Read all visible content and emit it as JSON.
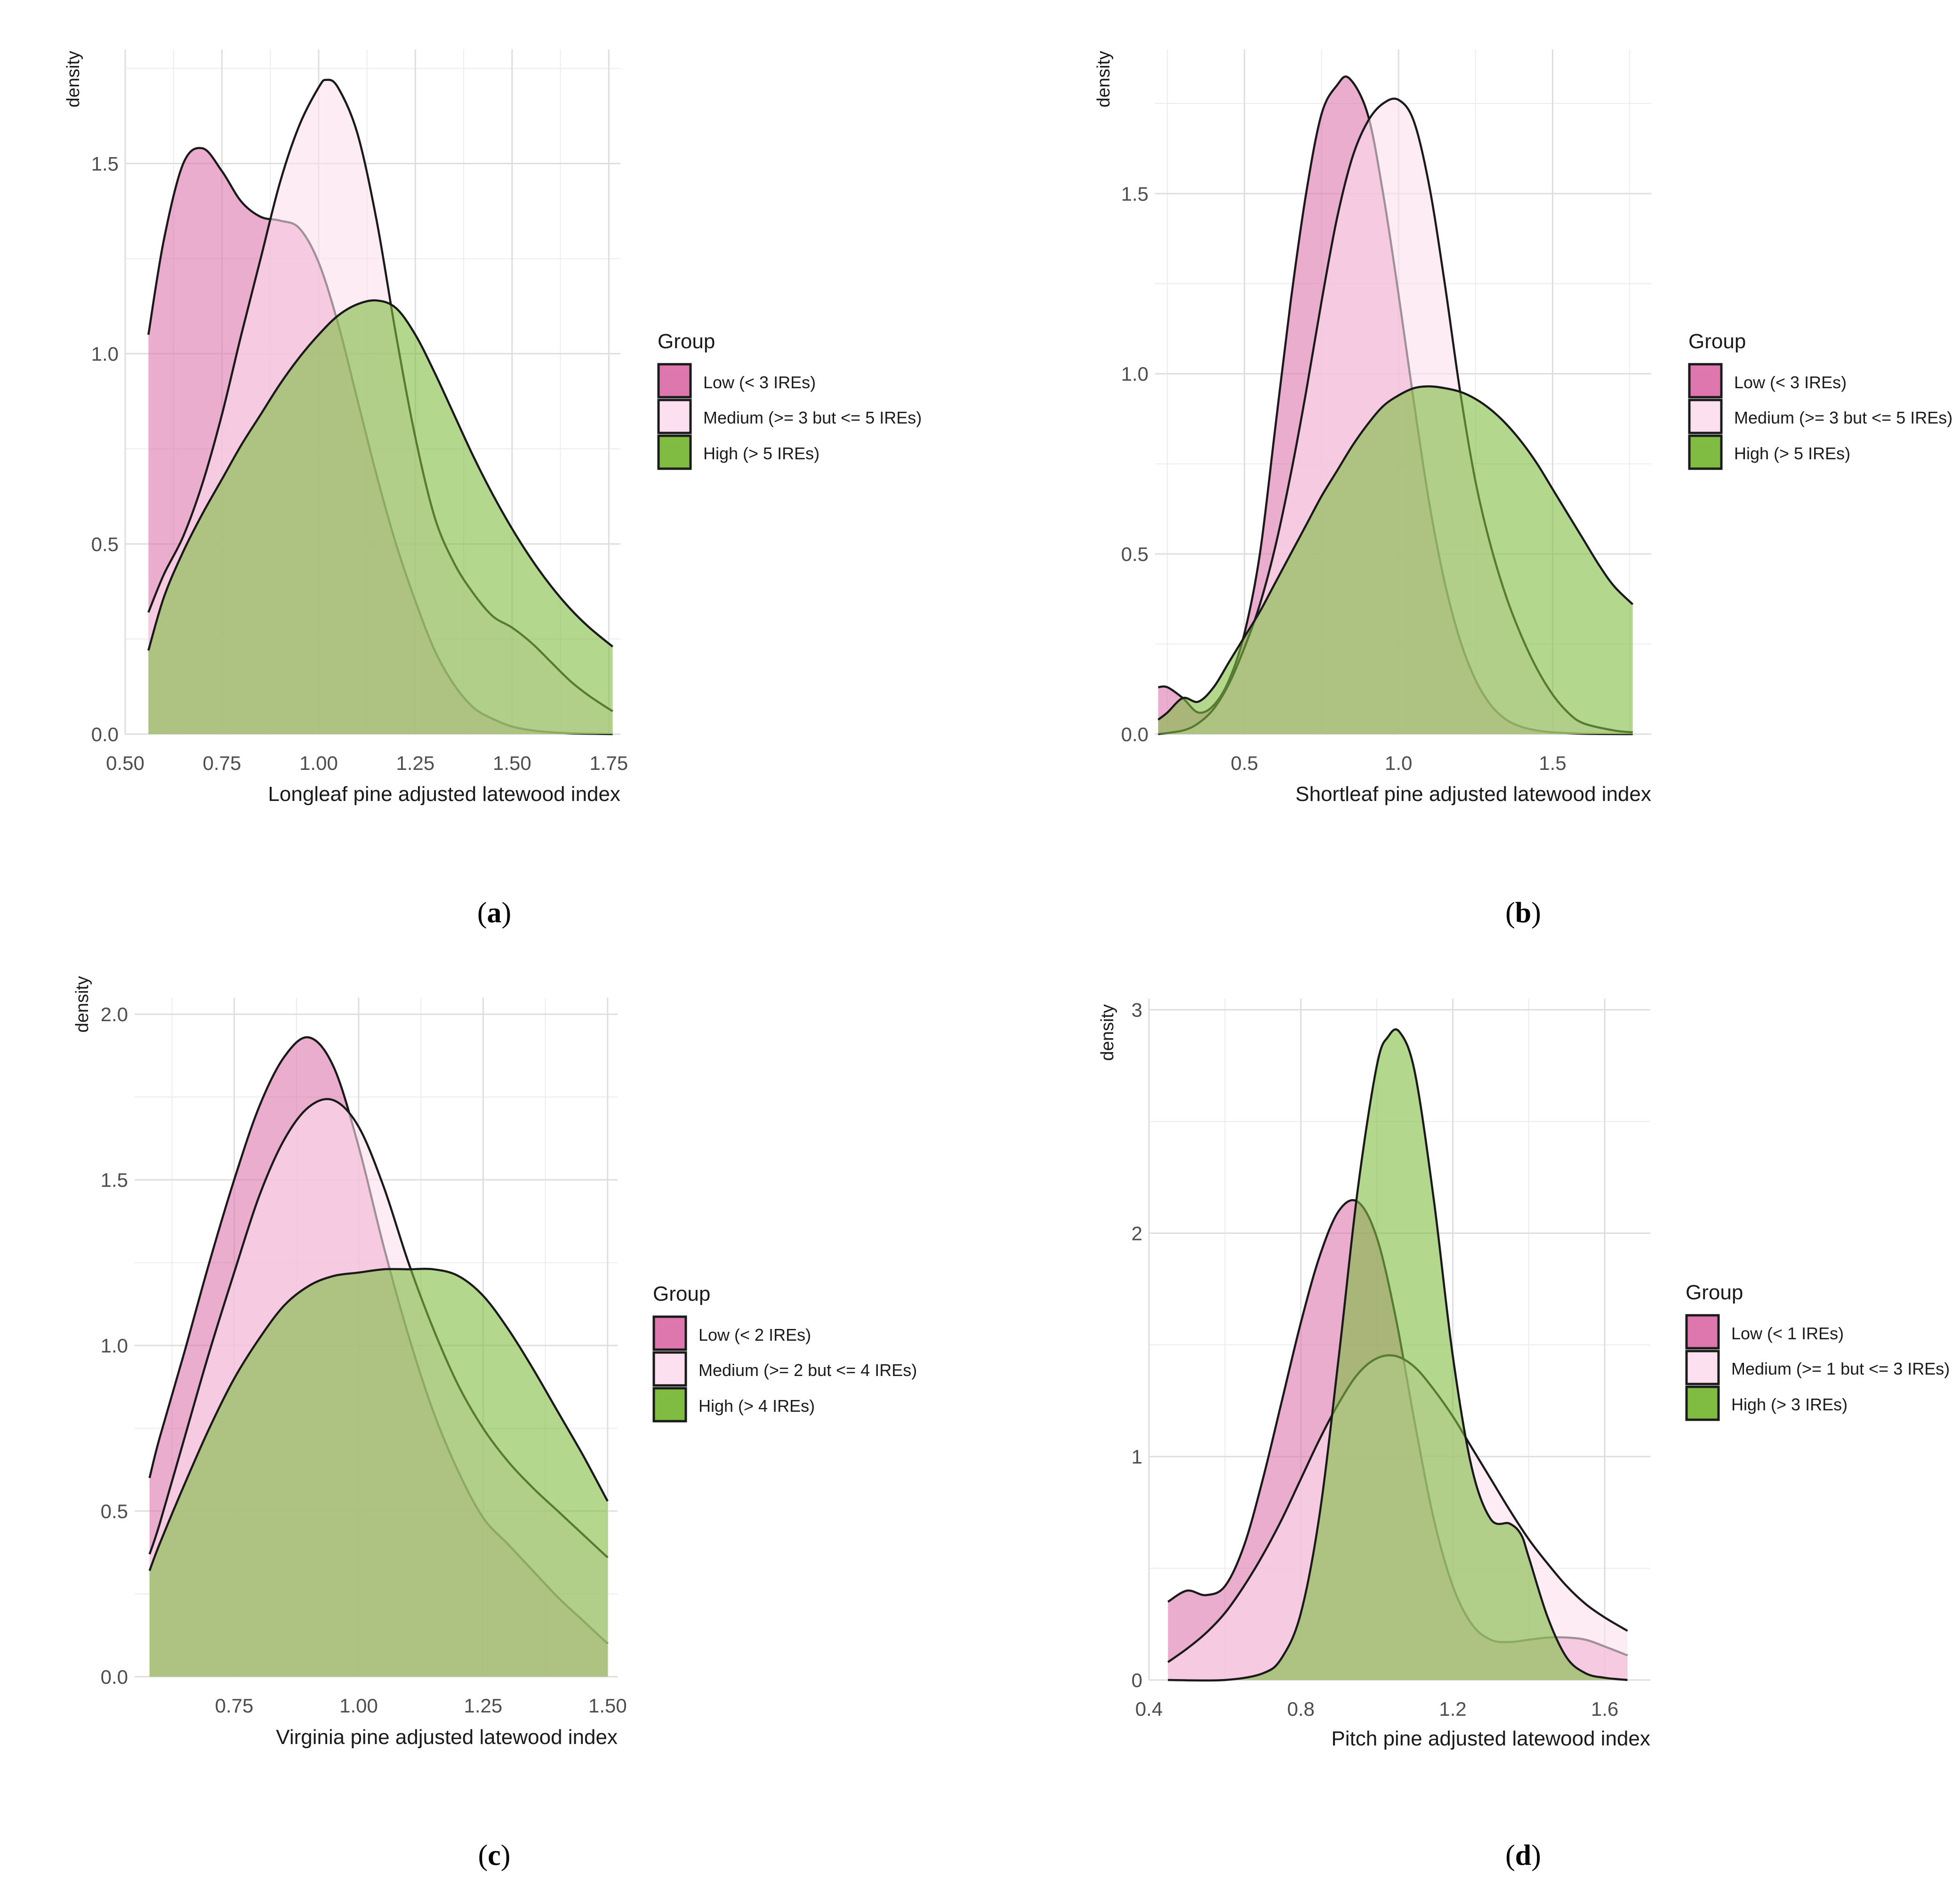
{
  "colors": {
    "low": "#de77ae",
    "medium": "#fde0ef",
    "high": "#7fbc41",
    "grid": "#dedede",
    "outline": "#1a1a1a"
  },
  "chart_data": [
    {
      "panel": "a",
      "caption": "(a)",
      "caption_letter": "a",
      "type": "area",
      "xlabel": "Longleaf pine adjusted latewood index",
      "ylabel": "density",
      "xlim": [
        0.5,
        1.78
      ],
      "ylim": [
        0,
        1.8
      ],
      "xticks": [
        0.5,
        0.75,
        1.0,
        1.25,
        1.5,
        1.75
      ],
      "xtick_labels": [
        "0.50",
        "0.75",
        "1.00",
        "1.25",
        "1.50",
        "1.75"
      ],
      "yticks": [
        0,
        0.5,
        1.0,
        1.5
      ],
      "ytick_labels": [
        "0.0",
        "0.5",
        "1.0",
        "1.5"
      ],
      "legend_title": "Group",
      "series": [
        {
          "key": "low",
          "name": "Low (< 3 IREs)",
          "x": [
            0.56,
            0.6,
            0.65,
            0.7,
            0.75,
            0.8,
            0.85,
            0.9,
            0.95,
            1.0,
            1.05,
            1.1,
            1.15,
            1.2,
            1.25,
            1.3,
            1.35,
            1.4,
            1.45,
            1.5,
            1.55,
            1.6,
            1.65,
            1.7,
            1.76
          ],
          "y": [
            1.05,
            1.3,
            1.5,
            1.54,
            1.48,
            1.4,
            1.36,
            1.35,
            1.33,
            1.24,
            1.08,
            0.88,
            0.68,
            0.5,
            0.35,
            0.22,
            0.13,
            0.07,
            0.04,
            0.02,
            0.01,
            0.005,
            0.002,
            0.001,
            0.0
          ]
        },
        {
          "key": "medium",
          "name": "Medium (>= 3 but <= 5 IREs)",
          "x": [
            0.56,
            0.6,
            0.65,
            0.7,
            0.75,
            0.8,
            0.85,
            0.9,
            0.95,
            1.0,
            1.02,
            1.05,
            1.1,
            1.15,
            1.2,
            1.25,
            1.3,
            1.35,
            1.4,
            1.45,
            1.5,
            1.55,
            1.6,
            1.65,
            1.7,
            1.76
          ],
          "y": [
            0.32,
            0.42,
            0.52,
            0.66,
            0.84,
            1.05,
            1.25,
            1.45,
            1.6,
            1.7,
            1.72,
            1.7,
            1.58,
            1.35,
            1.05,
            0.78,
            0.57,
            0.45,
            0.37,
            0.31,
            0.28,
            0.24,
            0.19,
            0.14,
            0.1,
            0.06
          ]
        },
        {
          "key": "high",
          "name": "High (> 5 IREs)",
          "x": [
            0.56,
            0.6,
            0.65,
            0.7,
            0.75,
            0.8,
            0.85,
            0.9,
            0.95,
            1.0,
            1.05,
            1.1,
            1.15,
            1.2,
            1.25,
            1.3,
            1.35,
            1.4,
            1.45,
            1.5,
            1.55,
            1.6,
            1.65,
            1.7,
            1.76
          ],
          "y": [
            0.22,
            0.36,
            0.48,
            0.58,
            0.67,
            0.76,
            0.84,
            0.92,
            0.99,
            1.05,
            1.1,
            1.13,
            1.14,
            1.12,
            1.05,
            0.95,
            0.84,
            0.73,
            0.63,
            0.54,
            0.46,
            0.39,
            0.33,
            0.28,
            0.23
          ]
        }
      ]
    },
    {
      "panel": "b",
      "caption": "(b)",
      "caption_letter": "b",
      "type": "area",
      "xlabel": "Shortleaf pine adjusted latewood index",
      "ylabel": "density",
      "xlim": [
        0.21,
        1.82
      ],
      "ylim": [
        0,
        1.9
      ],
      "xticks": [
        0.5,
        1.0,
        1.5
      ],
      "xtick_labels": [
        "0.5",
        "1.0",
        "1.5"
      ],
      "yticks": [
        0,
        0.5,
        1.0,
        1.5
      ],
      "ytick_labels": [
        "0.0",
        "0.5",
        "1.0",
        "1.5"
      ],
      "legend_title": "Group",
      "series": [
        {
          "key": "low",
          "name": "Low (< 3 IREs)",
          "x": [
            0.22,
            0.25,
            0.3,
            0.35,
            0.4,
            0.45,
            0.5,
            0.55,
            0.6,
            0.65,
            0.7,
            0.75,
            0.8,
            0.84,
            0.9,
            0.95,
            1.0,
            1.05,
            1.1,
            1.15,
            1.2,
            1.25,
            1.3,
            1.35,
            1.4,
            1.45,
            1.5,
            1.6,
            1.76
          ],
          "y": [
            0.13,
            0.13,
            0.1,
            0.06,
            0.08,
            0.15,
            0.28,
            0.5,
            0.85,
            1.2,
            1.5,
            1.72,
            1.8,
            1.82,
            1.72,
            1.5,
            1.22,
            0.92,
            0.64,
            0.42,
            0.26,
            0.15,
            0.08,
            0.04,
            0.02,
            0.01,
            0.005,
            0.001,
            0.0
          ]
        },
        {
          "key": "medium",
          "name": "Medium (>= 3 but <= 5 IREs)",
          "x": [
            0.22,
            0.3,
            0.35,
            0.4,
            0.45,
            0.5,
            0.55,
            0.6,
            0.65,
            0.7,
            0.75,
            0.8,
            0.85,
            0.9,
            0.95,
            1.0,
            1.05,
            1.1,
            1.15,
            1.2,
            1.25,
            1.3,
            1.35,
            1.4,
            1.45,
            1.5,
            1.55,
            1.6,
            1.7,
            1.76
          ],
          "y": [
            0.0,
            0.01,
            0.03,
            0.07,
            0.14,
            0.24,
            0.36,
            0.52,
            0.72,
            0.95,
            1.2,
            1.43,
            1.6,
            1.7,
            1.75,
            1.76,
            1.7,
            1.52,
            1.25,
            0.95,
            0.7,
            0.52,
            0.38,
            0.27,
            0.18,
            0.11,
            0.06,
            0.03,
            0.01,
            0.005
          ]
        },
        {
          "key": "high",
          "name": "High (> 5 IREs)",
          "x": [
            0.22,
            0.25,
            0.3,
            0.35,
            0.4,
            0.45,
            0.5,
            0.55,
            0.6,
            0.65,
            0.7,
            0.75,
            0.8,
            0.85,
            0.9,
            0.95,
            1.0,
            1.05,
            1.1,
            1.15,
            1.2,
            1.25,
            1.3,
            1.35,
            1.4,
            1.45,
            1.5,
            1.55,
            1.6,
            1.65,
            1.7,
            1.76
          ],
          "y": [
            0.04,
            0.06,
            0.1,
            0.09,
            0.13,
            0.2,
            0.27,
            0.34,
            0.42,
            0.5,
            0.58,
            0.66,
            0.73,
            0.8,
            0.86,
            0.91,
            0.94,
            0.96,
            0.965,
            0.96,
            0.95,
            0.93,
            0.9,
            0.86,
            0.81,
            0.75,
            0.68,
            0.61,
            0.54,
            0.47,
            0.41,
            0.36
          ]
        }
      ]
    },
    {
      "panel": "c",
      "caption": "(c)",
      "caption_letter": "c",
      "type": "area",
      "xlabel": "Virginia pine adjusted latewood index",
      "ylabel": "density",
      "xlim": [
        0.55,
        1.52
      ],
      "ylim": [
        0,
        2.05
      ],
      "xticks": [
        0.75,
        1.0,
        1.25,
        1.5
      ],
      "xtick_labels": [
        "0.75",
        "1.00",
        "1.25",
        "1.50"
      ],
      "yticks": [
        0,
        0.5,
        1.0,
        1.5,
        2.0
      ],
      "ytick_labels": [
        "0.0",
        "0.5",
        "1.0",
        "1.5",
        "2.0"
      ],
      "legend_title": "Group",
      "series": [
        {
          "key": "low",
          "name": "Low (< 2 IREs)",
          "x": [
            0.58,
            0.6,
            0.65,
            0.7,
            0.75,
            0.8,
            0.85,
            0.9,
            0.95,
            1.0,
            1.05,
            1.1,
            1.15,
            1.2,
            1.25,
            1.3,
            1.35,
            1.4,
            1.45,
            1.5
          ],
          "y": [
            0.6,
            0.72,
            0.98,
            1.25,
            1.5,
            1.72,
            1.87,
            1.93,
            1.84,
            1.6,
            1.3,
            1.03,
            0.8,
            0.62,
            0.48,
            0.4,
            0.32,
            0.24,
            0.17,
            0.1
          ]
        },
        {
          "key": "medium",
          "name": "Medium (>= 2 but <= 4 IREs)",
          "x": [
            0.58,
            0.6,
            0.65,
            0.7,
            0.75,
            0.8,
            0.85,
            0.9,
            0.95,
            1.0,
            1.05,
            1.1,
            1.15,
            1.2,
            1.25,
            1.3,
            1.35,
            1.4,
            1.45,
            1.5
          ],
          "y": [
            0.37,
            0.46,
            0.72,
            0.98,
            1.22,
            1.45,
            1.62,
            1.72,
            1.74,
            1.66,
            1.48,
            1.25,
            1.05,
            0.88,
            0.75,
            0.65,
            0.57,
            0.5,
            0.43,
            0.36
          ]
        },
        {
          "key": "high",
          "name": "High (> 4 IREs)",
          "x": [
            0.58,
            0.6,
            0.65,
            0.7,
            0.75,
            0.8,
            0.85,
            0.9,
            0.95,
            1.0,
            1.05,
            1.1,
            1.15,
            1.2,
            1.25,
            1.3,
            1.35,
            1.4,
            1.45,
            1.5
          ],
          "y": [
            0.32,
            0.4,
            0.58,
            0.75,
            0.9,
            1.02,
            1.12,
            1.18,
            1.21,
            1.22,
            1.23,
            1.23,
            1.23,
            1.21,
            1.15,
            1.05,
            0.93,
            0.8,
            0.67,
            0.53
          ]
        }
      ]
    },
    {
      "panel": "d",
      "caption": "(d)",
      "caption_letter": "d",
      "type": "area",
      "xlabel": "Pitch pine adjusted latewood index",
      "ylabel": "density",
      "xlim": [
        0.4,
        1.72
      ],
      "ylim": [
        0,
        3.05
      ],
      "xticks": [
        0.4,
        0.8,
        1.2,
        1.6
      ],
      "xtick_labels": [
        "0.4",
        "0.8",
        "1.2",
        "1.6"
      ],
      "yticks": [
        0,
        1,
        2,
        3
      ],
      "ytick_labels": [
        "0",
        "1",
        "2",
        "3"
      ],
      "legend_title": "Group",
      "series": [
        {
          "key": "low",
          "name": "Low (< 1 IREs)",
          "x": [
            0.45,
            0.5,
            0.55,
            0.6,
            0.65,
            0.7,
            0.75,
            0.8,
            0.85,
            0.9,
            0.95,
            1.0,
            1.05,
            1.1,
            1.15,
            1.2,
            1.25,
            1.3,
            1.35,
            1.4,
            1.45,
            1.5,
            1.55,
            1.6,
            1.66
          ],
          "y": [
            0.35,
            0.4,
            0.38,
            0.42,
            0.6,
            0.9,
            1.25,
            1.6,
            1.9,
            2.1,
            2.14,
            1.98,
            1.62,
            1.15,
            0.72,
            0.42,
            0.25,
            0.18,
            0.17,
            0.18,
            0.19,
            0.19,
            0.18,
            0.15,
            0.11
          ]
        },
        {
          "key": "medium",
          "name": "Medium (>= 1 but <= 3 IREs)",
          "x": [
            0.45,
            0.5,
            0.55,
            0.6,
            0.65,
            0.7,
            0.75,
            0.8,
            0.85,
            0.9,
            0.95,
            1.0,
            1.05,
            1.1,
            1.15,
            1.2,
            1.25,
            1.3,
            1.35,
            1.4,
            1.45,
            1.5,
            1.55,
            1.6,
            1.66
          ],
          "y": [
            0.08,
            0.14,
            0.21,
            0.3,
            0.42,
            0.56,
            0.72,
            0.9,
            1.08,
            1.24,
            1.37,
            1.44,
            1.45,
            1.4,
            1.3,
            1.18,
            1.04,
            0.9,
            0.76,
            0.63,
            0.52,
            0.42,
            0.34,
            0.28,
            0.22
          ]
        },
        {
          "key": "high",
          "name": "High (> 3 IREs)",
          "x": [
            0.45,
            0.6,
            0.7,
            0.75,
            0.8,
            0.85,
            0.9,
            0.95,
            1.0,
            1.03,
            1.06,
            1.1,
            1.15,
            1.2,
            1.25,
            1.3,
            1.35,
            1.38,
            1.4,
            1.45,
            1.5,
            1.55,
            1.6,
            1.66
          ],
          "y": [
            0.0,
            0.0,
            0.03,
            0.1,
            0.3,
            0.75,
            1.45,
            2.2,
            2.75,
            2.88,
            2.9,
            2.72,
            2.15,
            1.45,
            0.95,
            0.72,
            0.7,
            0.65,
            0.55,
            0.28,
            0.1,
            0.03,
            0.01,
            0.0
          ]
        }
      ]
    }
  ]
}
